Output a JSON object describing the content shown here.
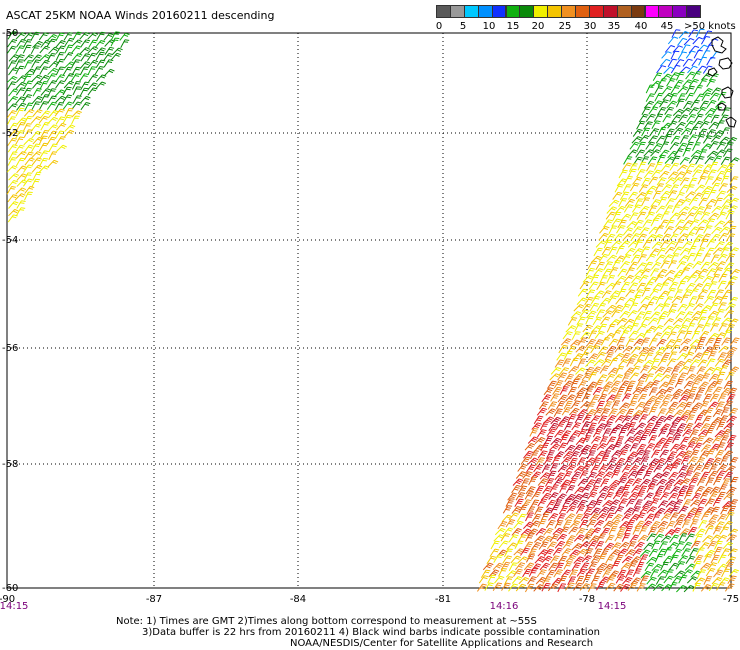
{
  "title": "ASCAT 25KM NOAA Winds 20160211 descending",
  "colorbar": {
    "tick_labels": [
      "0",
      "5",
      "10",
      "15",
      "20",
      "25",
      "30",
      "35",
      "40",
      "45",
      ">50 knots"
    ],
    "colors": [
      "#5a5a5a",
      "#999999",
      "#00c8ff",
      "#0090ff",
      "#1030ff",
      "#10b010",
      "#0a8a0a",
      "#f0f000",
      "#f4c400",
      "#f09020",
      "#e06010",
      "#e02020",
      "#c0102a",
      "#b06020",
      "#7a3a10",
      "#ff00ff",
      "#c000c0",
      "#8a00c0",
      "#4a0080"
    ]
  },
  "map": {
    "lat_labels": [
      "-50",
      "-52",
      "-54",
      "-56",
      "-58",
      "-60"
    ],
    "lon_labels": [
      "-90",
      "-87",
      "-84",
      "-81",
      "-78",
      "-75"
    ],
    "time_labels": [
      "14:15",
      "14:16",
      "14:15"
    ]
  },
  "footer": {
    "line1": "Note: 1) Times are GMT 2)Times along bottom correspond to measurement at ~55S",
    "line2": "3)Data buffer is 22 hrs from 20160211 4) Black wind barbs indicate possible contamination",
    "line3": "NOAA/NESDIS/Center for Satellite Applications and Research"
  }
}
